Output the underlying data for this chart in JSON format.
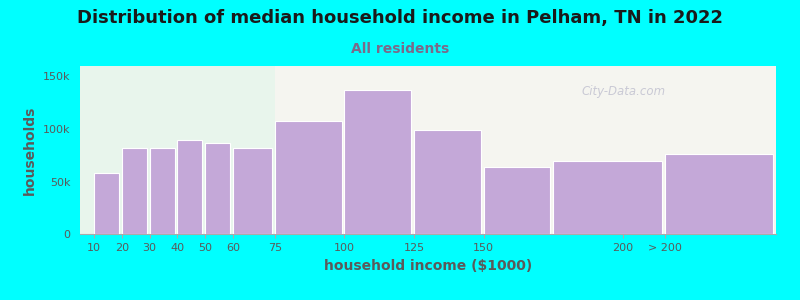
{
  "title": "Distribution of median household income in Pelham, TN in 2022",
  "subtitle": "All residents",
  "xlabel": "household income ($1000)",
  "ylabel": "households",
  "title_fontsize": 13,
  "subtitle_fontsize": 10,
  "label_fontsize": 10,
  "background_color": "#00FFFF",
  "bar_color": "#C4A8D8",
  "bar_edge_color": "#ffffff",
  "subtitle_color": "#7a6a8a",
  "title_color": "#1a1a1a",
  "axis_text_color": "#5a5a5a",
  "categories": [
    "10",
    "20",
    "30",
    "40",
    "50",
    "60",
    "75",
    "100",
    "125",
    "150",
    "200",
    "> 200"
  ],
  "values": [
    58000,
    82000,
    82000,
    90000,
    87000,
    82000,
    108000,
    137000,
    99000,
    64000,
    70000,
    76000
  ],
  "yticks": [
    0,
    50000,
    100000,
    150000
  ],
  "ytick_labels": [
    "0",
    "50k",
    "100k",
    "150k"
  ],
  "watermark": "City-Data.com",
  "x_positions": [
    10,
    20,
    30,
    40,
    50,
    60,
    75,
    100,
    125,
    150,
    175,
    215
  ],
  "bar_widths": [
    9,
    9,
    9,
    9,
    9,
    14,
    24,
    24,
    24,
    24,
    39,
    39
  ]
}
